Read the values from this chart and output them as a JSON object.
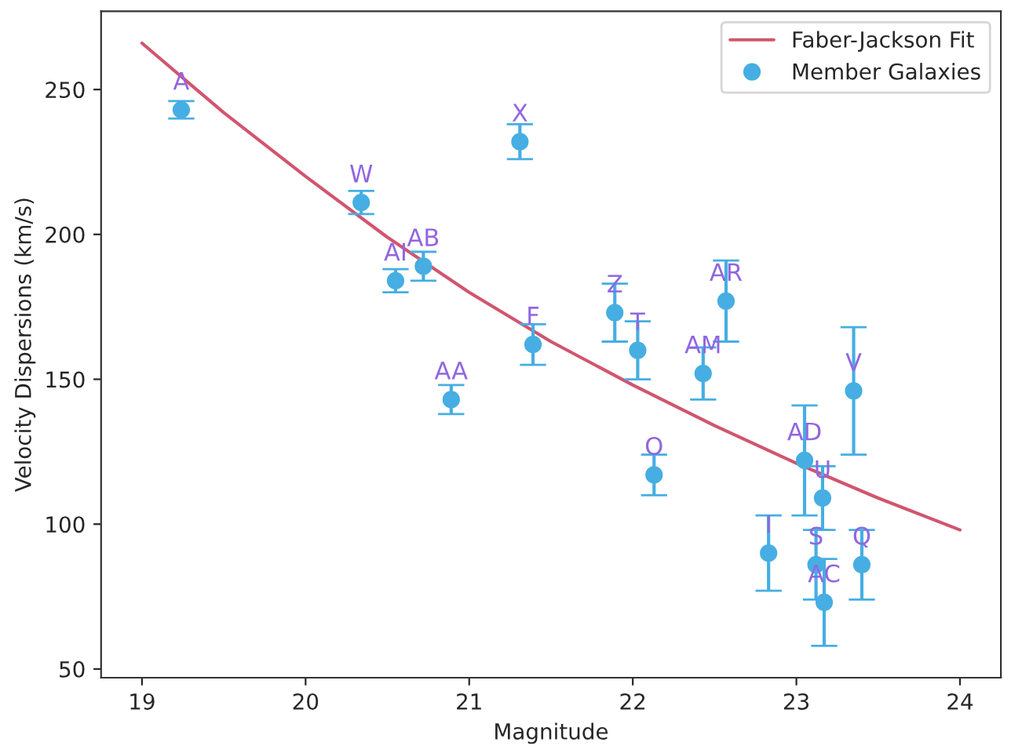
{
  "chart_data": {
    "type": "scatter",
    "xlabel": "Magnitude",
    "ylabel": "Velocity Dispersions (km/s)",
    "xlim": [
      18.75,
      24.25
    ],
    "ylim": [
      47,
      277
    ],
    "xticks": [
      19,
      20,
      21,
      22,
      23,
      24
    ],
    "yticks": [
      50,
      100,
      150,
      200,
      250
    ],
    "legend": "top right",
    "grid": false,
    "series": [
      {
        "name": "Faber-Jackson Fit",
        "type": "line",
        "color": "#d0566f",
        "marker": "none",
        "line_style": "solid",
        "x": [
          19,
          19.5,
          20,
          20.5,
          21,
          21.5,
          22,
          22.5,
          23,
          23.5,
          24
        ],
        "values": [
          266,
          242,
          220,
          199,
          180,
          163,
          148,
          134,
          121,
          109,
          98
        ]
      },
      {
        "name": "Member Galaxies",
        "color": "#46aee3",
        "marker": "circle",
        "x": [
          19.24,
          20.34,
          20.55,
          20.72,
          20.89,
          21.31,
          21.39,
          21.89,
          22.03,
          22.13,
          22.43,
          22.57,
          22.83,
          23.05,
          23.16,
          23.12,
          23.17,
          23.4,
          23.35
        ],
        "values": [
          243,
          211,
          184,
          189,
          143,
          232,
          162,
          173,
          160,
          117,
          152,
          177,
          90,
          122,
          109,
          86,
          73,
          86,
          146
        ],
        "errors": [
          3,
          4,
          4,
          5,
          5,
          6,
          7,
          10,
          10,
          7,
          9,
          14,
          13,
          19,
          11,
          12,
          15,
          12,
          22
        ]
      }
    ],
    "annotations": [
      {
        "text": "A",
        "x": 19.24,
        "y": 243
      },
      {
        "text": "W",
        "x": 20.34,
        "y": 211
      },
      {
        "text": "AI",
        "x": 20.55,
        "y": 184
      },
      {
        "text": "AB",
        "x": 20.72,
        "y": 189
      },
      {
        "text": "AA",
        "x": 20.89,
        "y": 143
      },
      {
        "text": "X",
        "x": 21.31,
        "y": 232
      },
      {
        "text": "F",
        "x": 21.39,
        "y": 162
      },
      {
        "text": "Z",
        "x": 21.89,
        "y": 173
      },
      {
        "text": "T",
        "x": 22.03,
        "y": 160
      },
      {
        "text": "O",
        "x": 22.13,
        "y": 117
      },
      {
        "text": "AM",
        "x": 22.43,
        "y": 152
      },
      {
        "text": "AR",
        "x": 22.57,
        "y": 177
      },
      {
        "text": "I",
        "x": 22.83,
        "y": 90
      },
      {
        "text": "AD",
        "x": 23.05,
        "y": 122
      },
      {
        "text": "U",
        "x": 23.16,
        "y": 109
      },
      {
        "text": "S",
        "x": 23.12,
        "y": 86
      },
      {
        "text": "AC",
        "x": 23.17,
        "y": 73
      },
      {
        "text": "Q",
        "x": 23.4,
        "y": 86
      },
      {
        "text": "V",
        "x": 23.35,
        "y": 146
      }
    ]
  }
}
